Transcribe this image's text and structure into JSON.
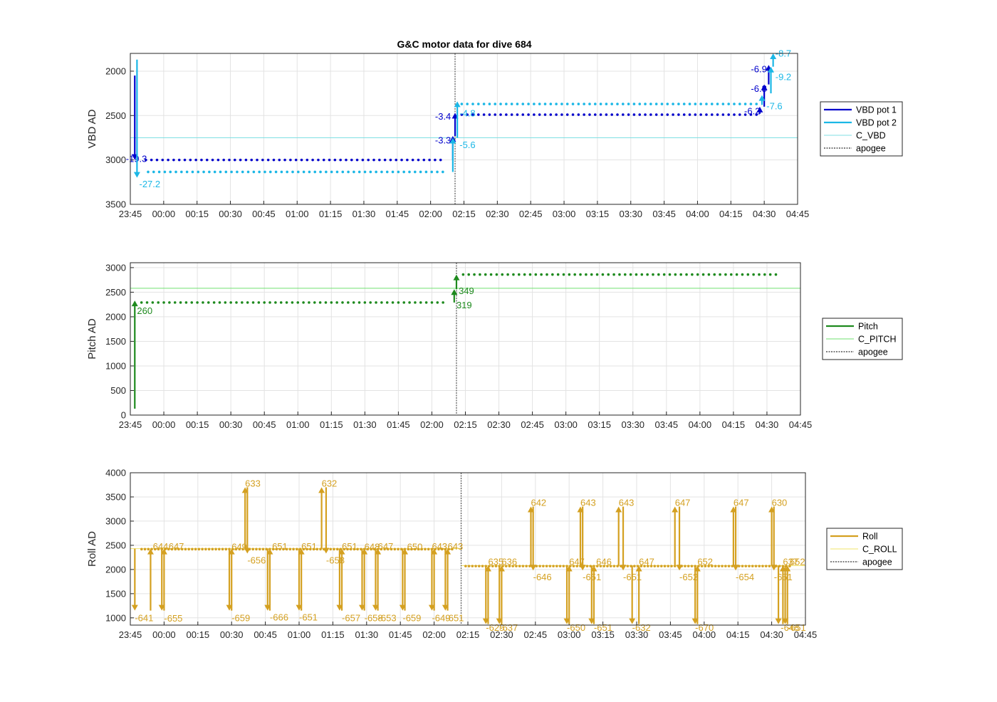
{
  "figure": {
    "title": "G&C motor data for dive 684"
  },
  "chart_data": [
    {
      "type": "line",
      "id": "vbd",
      "ylabel": "VBD AD",
      "ylim": [
        1800,
        3500
      ],
      "y_reversed": true,
      "yticks": [
        "2000",
        "2500",
        "3000",
        "3500"
      ],
      "xlim": [
        "23:45",
        "04:45"
      ],
      "xticks": [
        "23:45",
        "00:00",
        "00:15",
        "00:30",
        "00:45",
        "01:00",
        "01:15",
        "01:30",
        "01:45",
        "02:00",
        "02:15",
        "02:30",
        "02:45",
        "03:00",
        "03:15",
        "03:30",
        "03:45",
        "04:00",
        "04:15",
        "04:30",
        "04:45"
      ],
      "grid": true,
      "legend_placement": "outside-right",
      "legend": [
        "VBD pot 1",
        "VBD pot 2",
        "C_VBD",
        "apogee"
      ],
      "colors": {
        "pot1": "#0000cc",
        "pot2": "#1bb7e6",
        "ref": "#7fdfe3",
        "apogee": "#555555"
      },
      "reference": {
        "name": "C_VBD",
        "value": 2750
      },
      "apogee": "02:11",
      "series": [
        {
          "name": "VBD pot 1",
          "start": "23:52",
          "end": "02:06",
          "value": 3000,
          "gap_minutes": 2.5
        },
        {
          "name": "VBD pot 1",
          "start": "02:14",
          "end": "04:27",
          "value": 2490,
          "gap_minutes": 2.5
        },
        {
          "name": "VBD pot 2",
          "start": "23:53",
          "end": "02:06",
          "value": 3135,
          "gap_minutes": 2.5
        },
        {
          "name": "VBD pot 2",
          "start": "02:14",
          "end": "04:27",
          "value": 2370,
          "gap_minutes": 2.5
        }
      ],
      "arrows": [
        {
          "series": "pot1",
          "x": "23:47",
          "from": 2050,
          "to": 3000,
          "label": "-19.3",
          "lx": "23:43",
          "ly": 2985
        },
        {
          "series": "pot2",
          "x": "23:48",
          "from": 1870,
          "to": 3200,
          "label": "-27.2",
          "lx": "23:49",
          "ly": 3270
        },
        {
          "series": "pot1",
          "x": "02:10",
          "from": 3000,
          "to": 2730,
          "label": "-3.3",
          "lx": "02:02",
          "ly": 2780
        },
        {
          "series": "pot1",
          "x": "02:11",
          "from": 2730,
          "to": 2470,
          "label": "-3.4",
          "lx": "02:02",
          "ly": 2510
        },
        {
          "series": "pot2",
          "x": "02:10",
          "from": 3135,
          "to": 2750,
          "label": "-5.6",
          "lx": "02:13",
          "ly": 2830
        },
        {
          "series": "pot2",
          "x": "02:12",
          "from": 2750,
          "to": 2340,
          "label": "-4.8",
          "lx": "02:13",
          "ly": 2475
        },
        {
          "series": "pot1",
          "x": "04:28",
          "from": 2480,
          "to": 2400,
          "label": "-6.2",
          "lx": "04:21",
          "ly": 2450
        },
        {
          "series": "pot1",
          "x": "04:30",
          "from": 2400,
          "to": 2150,
          "label": "-6.8",
          "lx": "04:24",
          "ly": 2195
        },
        {
          "series": "pot1",
          "x": "04:32",
          "from": 2150,
          "to": 1930,
          "label": "-6.9",
          "lx": "04:24",
          "ly": 1975
        },
        {
          "series": "pot2",
          "x": "04:29",
          "from": 2380,
          "to": 2270,
          "label": "-7.6",
          "lx": "04:31",
          "ly": 2395
        },
        {
          "series": "pot2",
          "x": "04:33",
          "from": 2250,
          "to": 1950,
          "label": "-9.2",
          "lx": "04:35",
          "ly": 2065
        },
        {
          "series": "pot2",
          "x": "04:34",
          "from": 1950,
          "to": 1800,
          "label": "-8.7",
          "lx": "04:35",
          "ly": 1800
        }
      ]
    },
    {
      "type": "line",
      "id": "pitch",
      "ylabel": "Pitch AD",
      "ylim": [
        0,
        3100
      ],
      "yticks": [
        "0",
        "500",
        "1000",
        "1500",
        "2000",
        "2500",
        "3000"
      ],
      "xlim": [
        "23:45",
        "04:45"
      ],
      "xticks": [
        "23:45",
        "00:00",
        "00:15",
        "00:30",
        "00:45",
        "01:00",
        "01:15",
        "01:30",
        "01:45",
        "02:00",
        "02:15",
        "02:30",
        "02:45",
        "03:00",
        "03:15",
        "03:30",
        "03:45",
        "04:00",
        "04:15",
        "04:30",
        "04:45"
      ],
      "grid": true,
      "legend_placement": "outside-right",
      "legend": [
        "Pitch",
        "C_PITCH",
        "apogee"
      ],
      "colors": {
        "main": "#1e8a1e",
        "ref": "#6fe06f",
        "apogee": "#555555"
      },
      "reference": {
        "name": "C_PITCH",
        "value": 2580
      },
      "apogee": "02:11",
      "series": [
        {
          "name": "Pitch",
          "start": "23:50",
          "end": "02:06",
          "value": 2290,
          "gap_minutes": 2.5
        },
        {
          "name": "Pitch",
          "start": "02:14",
          "end": "04:35",
          "value": 2860,
          "gap_minutes": 2.5
        }
      ],
      "arrows": [
        {
          "series": "main",
          "x": "23:47",
          "from": 130,
          "to": 2330,
          "label": "260",
          "lx": "23:48",
          "ly": 2120
        },
        {
          "series": "main",
          "x": "02:10",
          "from": 2290,
          "to": 2560,
          "label": "319",
          "lx": "02:11",
          "ly": 2240
        },
        {
          "series": "main",
          "x": "02:11",
          "from": 2560,
          "to": 2860,
          "label": "349",
          "lx": "02:12",
          "ly": 2530
        }
      ]
    },
    {
      "type": "line",
      "id": "roll",
      "ylabel": "Roll AD",
      "ylim": [
        850,
        4000
      ],
      "yticks": [
        "1000",
        "1500",
        "2000",
        "2500",
        "3000",
        "3500",
        "4000"
      ],
      "xlim": [
        "23:45",
        "04:45"
      ],
      "xticks": [
        "23:45",
        "00:00",
        "00:15",
        "00:30",
        "00:45",
        "01:00",
        "01:15",
        "01:30",
        "01:45",
        "02:00",
        "02:15",
        "02:30",
        "02:45",
        "03:00",
        "03:15",
        "03:30",
        "03:45",
        "04:00",
        "04:15",
        "04:30",
        "04:45"
      ],
      "grid": true,
      "legend_placement": "outside-right",
      "legend": [
        "Roll",
        "C_ROLL",
        "apogee"
      ],
      "colors": {
        "main": "#d4a020",
        "ref": "#f1e46a",
        "apogee": "#555555"
      },
      "reference_segments": [
        {
          "name": "C_ROLL",
          "start": "23:45",
          "end": "02:12",
          "value": 2430
        },
        {
          "name": "C_ROLL",
          "start": "02:12",
          "end": "04:45",
          "value": 2080
        }
      ],
      "apogee": "02:12",
      "series": [
        {
          "name": "Roll",
          "start": "23:50",
          "end": "02:08",
          "value": 2420,
          "gap_minutes": 1.5
        },
        {
          "name": "Roll",
          "start": "02:14",
          "end": "04:38",
          "value": 2070,
          "gap_minutes": 1.5
        }
      ],
      "arrows": [
        {
          "x": "23:47",
          "from": 2430,
          "to": 1150,
          "label": "-641",
          "lx": "23:47",
          "ly": 1000
        },
        {
          "x": "23:54",
          "from": 1150,
          "to": 2430,
          "label": "644",
          "lx": "23:55",
          "ly": 2480
        },
        {
          "x": "23:59",
          "from": 2430,
          "to": 1150,
          "label": "-655",
          "lx": "24:00",
          "ly": 990
        },
        {
          "x": "24:00",
          "from": 1150,
          "to": 2430,
          "label": "647",
          "lx": "24:02",
          "ly": 2480
        },
        {
          "x": "24:29",
          "from": 2430,
          "to": 1150,
          "label": "-659",
          "lx": "24:30",
          "ly": 1000
        },
        {
          "x": "24:30",
          "from": 1150,
          "to": 2430,
          "label": "649",
          "lx": "24:30",
          "ly": 2470
        },
        {
          "x": "24:36",
          "from": 2430,
          "to": 3700,
          "label": "633",
          "lx": "24:36",
          "ly": 3780
        },
        {
          "x": "24:37",
          "from": 3700,
          "to": 2330,
          "label": "-656",
          "lx": "24:37",
          "ly": 2190
        },
        {
          "x": "24:46",
          "from": 2430,
          "to": 1150,
          "label": "-666",
          "lx": "24:47",
          "ly": 1010
        },
        {
          "x": "24:47",
          "from": 1150,
          "to": 2430,
          "label": "651",
          "lx": "24:48",
          "ly": 2480
        },
        {
          "x": "25:00",
          "from": 2430,
          "to": 1150,
          "label": "-651",
          "lx": "25:00",
          "ly": 1010
        },
        {
          "x": "25:01",
          "from": 1150,
          "to": 2430,
          "label": "651",
          "lx": "25:01",
          "ly": 2480
        },
        {
          "x": "25:10",
          "from": 2430,
          "to": 3700,
          "label": "632",
          "lx": "25:10",
          "ly": 3780
        },
        {
          "x": "25:12",
          "from": 3700,
          "to": 2330,
          "label": "-658",
          "lx": "25:12",
          "ly": 2190
        },
        {
          "x": "25:18",
          "from": 2430,
          "to": 1150,
          "label": "-657",
          "lx": "25:19",
          "ly": 1000
        },
        {
          "x": "25:19",
          "from": 1150,
          "to": 2430,
          "label": "651",
          "lx": "25:19",
          "ly": 2480
        },
        {
          "x": "25:28",
          "from": 2430,
          "to": 1150,
          "label": "-658",
          "lx": "25:29",
          "ly": 1000
        },
        {
          "x": "25:29",
          "from": 1150,
          "to": 2430,
          "label": "648",
          "lx": "25:29",
          "ly": 2470
        },
        {
          "x": "25:34",
          "from": 2430,
          "to": 1150,
          "label": "-653",
          "lx": "25:35",
          "ly": 1000
        },
        {
          "x": "25:35",
          "from": 1150,
          "to": 2430,
          "label": "647",
          "lx": "25:35",
          "ly": 2480
        },
        {
          "x": "25:46",
          "from": 2430,
          "to": 1150,
          "label": "-659",
          "lx": "25:46",
          "ly": 1000
        },
        {
          "x": "25:47",
          "from": 1150,
          "to": 2430,
          "label": "650",
          "lx": "25:48",
          "ly": 2470
        },
        {
          "x": "25:59",
          "from": 2430,
          "to": 1150,
          "label": "-649",
          "lx": "25:59",
          "ly": 1000
        },
        {
          "x": "26:00",
          "from": 1150,
          "to": 2430,
          "label": "643",
          "lx": "25:59",
          "ly": 2480
        },
        {
          "x": "26:05",
          "from": 2430,
          "to": 1150,
          "label": "-651",
          "lx": "26:05",
          "ly": 1000
        },
        {
          "x": "26:06",
          "from": 1150,
          "to": 2430,
          "label": "643",
          "lx": "26:06",
          "ly": 2480
        },
        {
          "x": "26:23",
          "from": 2080,
          "to": 870,
          "label": "-625",
          "lx": "26:23",
          "ly": 800
        },
        {
          "x": "26:24",
          "from": 870,
          "to": 2080,
          "label": "635",
          "lx": "26:24",
          "ly": 2160
        },
        {
          "x": "26:29",
          "from": 2080,
          "to": 870,
          "label": "-637",
          "lx": "26:29",
          "ly": 800
        },
        {
          "x": "26:30",
          "from": 870,
          "to": 2080,
          "label": "636",
          "lx": "26:30",
          "ly": 2160
        },
        {
          "x": "26:43",
          "from": 2080,
          "to": 3300,
          "label": "642",
          "lx": "26:43",
          "ly": 3380
        },
        {
          "x": "26:44",
          "from": 3300,
          "to": 1980,
          "label": "-646",
          "lx": "26:44",
          "ly": 1840
        },
        {
          "x": "26:59",
          "from": 2080,
          "to": 870,
          "label": "-650",
          "lx": "26:59",
          "ly": 800
        },
        {
          "x": "27:00",
          "from": 870,
          "to": 2080,
          "label": "647",
          "lx": "27:00",
          "ly": 2160
        },
        {
          "x": "27:05",
          "from": 2080,
          "to": 3300,
          "label": "643",
          "lx": "27:05",
          "ly": 3380
        },
        {
          "x": "27:06",
          "from": 3300,
          "to": 1980,
          "label": "-651",
          "lx": "27:06",
          "ly": 1840
        },
        {
          "x": "27:10",
          "from": 2080,
          "to": 870,
          "label": "-651",
          "lx": "27:11",
          "ly": 800
        },
        {
          "x": "27:11",
          "from": 870,
          "to": 2080,
          "label": "646",
          "lx": "27:12",
          "ly": 2160
        },
        {
          "x": "27:22",
          "from": 2080,
          "to": 3300,
          "label": "643",
          "lx": "27:22",
          "ly": 3380
        },
        {
          "x": "27:24",
          "from": 3300,
          "to": 1980,
          "label": "-651",
          "lx": "27:24",
          "ly": 1840
        },
        {
          "x": "27:28",
          "from": 2080,
          "to": 870,
          "label": "-632",
          "lx": "27:28",
          "ly": 800
        },
        {
          "x": "27:31",
          "from": 870,
          "to": 2080,
          "label": "647",
          "lx": "27:31",
          "ly": 2160
        },
        {
          "x": "27:47",
          "from": 2080,
          "to": 3300,
          "label": "647",
          "lx": "27:47",
          "ly": 3380
        },
        {
          "x": "27:49",
          "from": 3300,
          "to": 1980,
          "label": "-652",
          "lx": "27:49",
          "ly": 1840
        },
        {
          "x": "27:56",
          "from": 2080,
          "to": 870,
          "label": "-670",
          "lx": "27:56",
          "ly": 800
        },
        {
          "x": "27:57",
          "from": 870,
          "to": 2080,
          "label": "652",
          "lx": "27:57",
          "ly": 2160
        },
        {
          "x": "28:13",
          "from": 2080,
          "to": 3300,
          "label": "647",
          "lx": "28:13",
          "ly": 3380
        },
        {
          "x": "28:14",
          "from": 3300,
          "to": 1980,
          "label": "-654",
          "lx": "28:14",
          "ly": 1840
        },
        {
          "x": "28:30",
          "from": 2080,
          "to": 3300,
          "label": "630",
          "lx": "28:30",
          "ly": 3380
        },
        {
          "x": "28:31",
          "from": 3300,
          "to": 1980,
          "label": "-651",
          "lx": "28:31",
          "ly": 1840
        },
        {
          "x": "28:33",
          "from": 2080,
          "to": 870,
          "label": "-648",
          "lx": "28:34",
          "ly": 800
        },
        {
          "x": "28:35",
          "from": 870,
          "to": 2080,
          "label": "637",
          "lx": "28:35",
          "ly": 2160
        },
        {
          "x": "28:36",
          "from": 2080,
          "to": 870,
          "label": "-651",
          "lx": "28:37",
          "ly": 800
        },
        {
          "x": "28:37",
          "from": 870,
          "to": 2080,
          "label": "652",
          "lx": "28:38",
          "ly": 2160
        }
      ]
    }
  ]
}
